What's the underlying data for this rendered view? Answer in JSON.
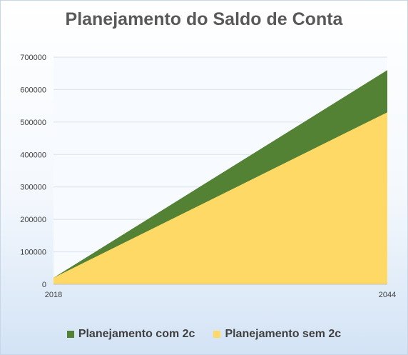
{
  "chart_data": {
    "type": "area",
    "title": "Planejamento do Saldo de Conta",
    "x": [
      2018,
      2044
    ],
    "x_tick_labels": [
      "2018",
      "2044"
    ],
    "xlim": [
      2018,
      2044
    ],
    "ylim": [
      0,
      700000
    ],
    "y_ticks": [
      0,
      100000,
      200000,
      300000,
      400000,
      500000,
      600000,
      700000
    ],
    "grid": true,
    "stacked": false,
    "legend_position": "bottom",
    "series": [
      {
        "name": "Planejamento com 2c",
        "values": [
          20000,
          660000
        ],
        "color": "#548235"
      },
      {
        "name": "Planejamento sem 2c",
        "values": [
          20000,
          530000
        ],
        "color": "#ffd966"
      }
    ]
  }
}
